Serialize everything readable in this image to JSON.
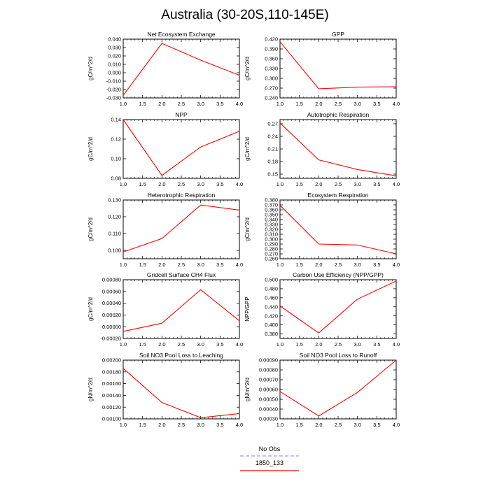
{
  "figure": {
    "title": "Australia (30-20S,110-145E)"
  },
  "legend": {
    "items": [
      {
        "label": "No Obs",
        "color": "#9b9bf0",
        "style": "dashed"
      },
      {
        "label": "1850_133",
        "color": "#ff0000",
        "style": "solid"
      }
    ]
  },
  "chart_data": [
    {
      "type": "line",
      "title": "Net Ecosystem Exchange",
      "ylabel": "gC/m^2/d",
      "xlim": [
        1.0,
        4.0
      ],
      "ylim": [
        -0.03,
        0.04
      ],
      "x": [
        1.0,
        2.0,
        3.0,
        4.0
      ],
      "xticks": [
        "1.0",
        "1.5",
        "2.0",
        "2.5",
        "3.0",
        "3.5",
        "4.0"
      ],
      "yticks": [
        "-0.030",
        "-0.020",
        "-0.010",
        "0.000",
        "0.010",
        "0.020",
        "0.030",
        "0.040"
      ],
      "series": [
        {
          "name": "1850_133",
          "values": [
            -0.027,
            0.035,
            0.015,
            -0.003
          ]
        }
      ]
    },
    {
      "type": "line",
      "title": "GPP",
      "ylabel": "gC/m^2/d",
      "xlim": [
        1.0,
        4.0
      ],
      "ylim": [
        0.24,
        0.42
      ],
      "x": [
        1.0,
        2.0,
        3.0,
        4.0
      ],
      "xticks": [
        "1.0",
        "1.5",
        "2.0",
        "2.5",
        "3.0",
        "3.5",
        "4.0"
      ],
      "yticks": [
        "0.240",
        "0.270",
        "0.300",
        "0.330",
        "0.360",
        "0.390",
        "0.420"
      ],
      "series": [
        {
          "name": "1850_133",
          "values": [
            0.412,
            0.268,
            0.273,
            0.274
          ]
        }
      ]
    },
    {
      "type": "line",
      "title": "NPP",
      "ylabel": "gC/m^2/d",
      "xlim": [
        1.0,
        4.0
      ],
      "ylim": [
        0.08,
        0.14
      ],
      "x": [
        1.0,
        2.0,
        3.0,
        4.0
      ],
      "xticks": [
        "1.0",
        "1.5",
        "2.0",
        "2.5",
        "3.0",
        "3.5",
        "4.0"
      ],
      "yticks": [
        "0.08",
        "0.10",
        "0.12",
        "0.14"
      ],
      "series": [
        {
          "name": "1850_133",
          "values": [
            0.14,
            0.083,
            0.112,
            0.128
          ]
        }
      ]
    },
    {
      "type": "line",
      "title": "Autotrophic Respiration",
      "ylabel": "gC/m^2/d",
      "xlim": [
        1.0,
        4.0
      ],
      "ylim": [
        0.14,
        0.28
      ],
      "x": [
        1.0,
        2.0,
        3.0,
        4.0
      ],
      "xticks": [
        "1.0",
        "1.5",
        "2.0",
        "2.5",
        "3.0",
        "3.5",
        "4.0"
      ],
      "yticks": [
        "0.15",
        "0.18",
        "0.21",
        "0.24",
        "0.27"
      ],
      "series": [
        {
          "name": "1850_133",
          "values": [
            0.272,
            0.184,
            0.161,
            0.146
          ]
        }
      ]
    },
    {
      "type": "line",
      "title": "Heterotrophic Respiration",
      "ylabel": "gC/m^2/d",
      "xlim": [
        1.0,
        4.0
      ],
      "ylim": [
        0.095,
        0.13
      ],
      "x": [
        1.0,
        2.0,
        3.0,
        4.0
      ],
      "xticks": [
        "1.0",
        "1.5",
        "2.0",
        "2.5",
        "3.0",
        "3.5",
        "4.0"
      ],
      "yticks": [
        "0.100",
        "0.110",
        "0.120",
        "0.130"
      ],
      "series": [
        {
          "name": "1850_133",
          "values": [
            0.099,
            0.107,
            0.127,
            0.124
          ]
        }
      ]
    },
    {
      "type": "line",
      "title": "Ecosystem Respiration",
      "ylabel": "gC/m^2/d",
      "xlim": [
        1.0,
        4.0
      ],
      "ylim": [
        0.26,
        0.38
      ],
      "x": [
        1.0,
        2.0,
        3.0,
        4.0
      ],
      "xticks": [
        "1.0",
        "1.5",
        "2.0",
        "2.5",
        "3.0",
        "3.5",
        "4.0"
      ],
      "yticks": [
        "0.260",
        "0.270",
        "0.280",
        "0.290",
        "0.300",
        "0.310",
        "0.320",
        "0.330",
        "0.340",
        "0.350",
        "0.360",
        "0.370",
        "0.380"
      ],
      "series": [
        {
          "name": "1850_133",
          "values": [
            0.369,
            0.29,
            0.288,
            0.27
          ]
        }
      ]
    },
    {
      "type": "line",
      "title": "Gridcell Surface CH4 Flux",
      "ylabel": "gC/m^2/d",
      "xlim": [
        1.0,
        4.0
      ],
      "ylim": [
        -0.0002,
        0.0008
      ],
      "x": [
        1.0,
        2.0,
        3.0,
        4.0
      ],
      "xticks": [
        "1.0",
        "1.5",
        "2.0",
        "2.5",
        "3.0",
        "3.5",
        "4.0"
      ],
      "yticks": [
        "-0.00020",
        "0.00000",
        "0.00020",
        "0.00040",
        "0.00060",
        "0.00080"
      ],
      "series": [
        {
          "name": "1850_133",
          "values": [
            -8e-05,
            6e-05,
            0.00063,
            0.0001
          ]
        }
      ]
    },
    {
      "type": "line",
      "title": "Carbon Use Efficiency (NPP/GPP)",
      "ylabel": "NPP/GPP",
      "xlim": [
        1.0,
        4.0
      ],
      "ylim": [
        0.37,
        0.5
      ],
      "x": [
        1.0,
        2.0,
        3.0,
        4.0
      ],
      "xticks": [
        "1.0",
        "1.5",
        "2.0",
        "2.5",
        "3.0",
        "3.5",
        "4.0"
      ],
      "yticks": [
        "0.380",
        "0.400",
        "0.420",
        "0.440",
        "0.460",
        "0.480",
        "0.500"
      ],
      "series": [
        {
          "name": "1850_133",
          "values": [
            0.442,
            0.382,
            0.457,
            0.497
          ]
        }
      ]
    },
    {
      "type": "line",
      "title": "Soil NO3 Pool Loss to Leaching",
      "ylabel": "gN/m^2/d",
      "xlim": [
        1.0,
        4.0
      ],
      "ylim": [
        0.001,
        0.002
      ],
      "x": [
        1.0,
        2.0,
        3.0,
        4.0
      ],
      "xticks": [
        "1.0",
        "1.5",
        "2.0",
        "2.5",
        "3.0",
        "3.5",
        "4.0"
      ],
      "yticks": [
        "0.00100",
        "0.00120",
        "0.00140",
        "0.00160",
        "0.00180",
        "0.00200"
      ],
      "series": [
        {
          "name": "1850_133",
          "values": [
            0.00186,
            0.00128,
            0.00102,
            0.00109
          ]
        }
      ]
    },
    {
      "type": "line",
      "title": "Soil NO3 Pool Loss to Runoff",
      "ylabel": "gN/m^2/d",
      "xlim": [
        1.0,
        4.0
      ],
      "ylim": [
        0.0003,
        0.0009
      ],
      "x": [
        1.0,
        2.0,
        3.0,
        4.0
      ],
      "xticks": [
        "1.0",
        "1.5",
        "2.0",
        "2.5",
        "3.0",
        "3.5",
        "4.0"
      ],
      "yticks": [
        "0.00030",
        "0.00040",
        "0.00050",
        "0.00060",
        "0.00070",
        "0.00080",
        "0.00090"
      ],
      "series": [
        {
          "name": "1850_133",
          "values": [
            0.00058,
            0.00033,
            0.00057,
            0.0009
          ]
        }
      ]
    }
  ]
}
